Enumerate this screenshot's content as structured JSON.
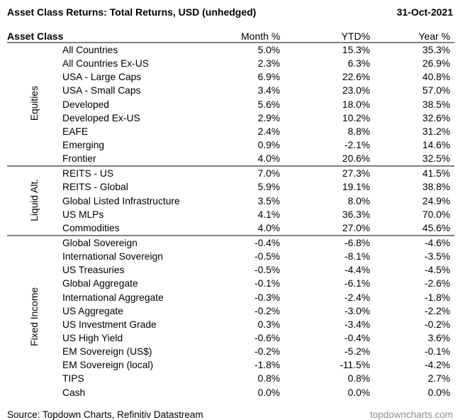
{
  "header": {
    "title": "Asset Class Returns: Total Returns, USD (unhedged)",
    "date": "31-Oct-2021"
  },
  "columns": {
    "asset_class": "Asset Class",
    "month": "Month %",
    "ytd": "YTD%",
    "year": "Year %"
  },
  "table": {
    "groups": [
      {
        "label": "Equities",
        "rows": [
          {
            "name": "All Countries",
            "month": "5.0%",
            "ytd": "15.3%",
            "year": "35.3%"
          },
          {
            "name": "All Countries Ex-US",
            "month": "2.3%",
            "ytd": "6.3%",
            "year": "26.9%"
          },
          {
            "name": "USA - Large Caps",
            "month": "6.9%",
            "ytd": "22.6%",
            "year": "40.8%"
          },
          {
            "name": "USA - Small Caps",
            "month": "3.4%",
            "ytd": "23.0%",
            "year": "57.0%"
          },
          {
            "name": "Developed",
            "month": "5.6%",
            "ytd": "18.0%",
            "year": "38.5%"
          },
          {
            "name": "Developed Ex-US",
            "month": "2.9%",
            "ytd": "10.2%",
            "year": "32.6%"
          },
          {
            "name": "EAFE",
            "month": "2.4%",
            "ytd": "8.8%",
            "year": "31.2%"
          },
          {
            "name": "Emerging",
            "month": "0.9%",
            "ytd": "-2.1%",
            "year": "14.6%"
          },
          {
            "name": "Frontier",
            "month": "4.0%",
            "ytd": "20.6%",
            "year": "32.5%"
          }
        ]
      },
      {
        "label": "Liquid Alt.",
        "rows": [
          {
            "name": "REITS - US",
            "month": "7.0%",
            "ytd": "27.3%",
            "year": "41.5%"
          },
          {
            "name": "REITS - Global",
            "month": "5.9%",
            "ytd": "19.1%",
            "year": "38.8%"
          },
          {
            "name": "Global Listed Infrastructure",
            "month": "3.5%",
            "ytd": "8.0%",
            "year": "24.9%"
          },
          {
            "name": "US MLPs",
            "month": "4.1%",
            "ytd": "36.3%",
            "year": "70.0%"
          },
          {
            "name": "Commodities",
            "month": "4.0%",
            "ytd": "27.0%",
            "year": "45.6%"
          }
        ]
      },
      {
        "label": "Fixed Income",
        "rows": [
          {
            "name": "Global Sovereign",
            "month": "-0.4%",
            "ytd": "-6.8%",
            "year": "-4.6%"
          },
          {
            "name": "International Sovereign",
            "month": "-0.5%",
            "ytd": "-8.1%",
            "year": "-3.5%"
          },
          {
            "name": "US Treasuries",
            "month": "-0.5%",
            "ytd": "-4.4%",
            "year": "-4.5%"
          },
          {
            "name": "Global Aggregate",
            "month": "-0.1%",
            "ytd": "-6.1%",
            "year": "-2.6%"
          },
          {
            "name": "International Aggregate",
            "month": "-0.3%",
            "ytd": "-2.4%",
            "year": "-1.8%"
          },
          {
            "name": "US Aggregate",
            "month": "-0.2%",
            "ytd": "-3.0%",
            "year": "-2.2%"
          },
          {
            "name": "US Investment Grade",
            "month": "0.3%",
            "ytd": "-3.4%",
            "year": "-0.2%"
          },
          {
            "name": "US High Yield",
            "month": "-0.6%",
            "ytd": "-0.4%",
            "year": "3.6%"
          },
          {
            "name": "EM Sovereign (US$)",
            "month": "-0.2%",
            "ytd": "-5.2%",
            "year": "-0.1%"
          },
          {
            "name": "EM Sovereign (local)",
            "month": "-1.8%",
            "ytd": "-11.5%",
            "year": "-4.2%"
          },
          {
            "name": "TIPS",
            "month": "0.8%",
            "ytd": "0.8%",
            "year": "2.7%"
          },
          {
            "name": "Cash",
            "month": "0.0%",
            "ytd": "0.0%",
            "year": "0.0%"
          }
        ]
      }
    ]
  },
  "footer": {
    "source": "Source: Topdown Charts, Refinitiv Datastream",
    "website": "topdowncharts.com"
  },
  "colors": {
    "text": "#000000",
    "rule_line": "#808080",
    "muted_text": "#8f8f8f",
    "background": "#ffffff"
  },
  "chart_data": {
    "type": "table",
    "title": "Asset Class Returns: Total Returns, USD (unhedged)",
    "as_of_date": "31-Oct-2021",
    "units": "percent",
    "columns": [
      "Asset Class",
      "Month %",
      "YTD%",
      "Year %"
    ],
    "groups": [
      {
        "label": "Equities",
        "rows": [
          [
            "All Countries",
            5.0,
            15.3,
            35.3
          ],
          [
            "All Countries Ex-US",
            2.3,
            6.3,
            26.9
          ],
          [
            "USA - Large Caps",
            6.9,
            22.6,
            40.8
          ],
          [
            "USA - Small Caps",
            3.4,
            23.0,
            57.0
          ],
          [
            "Developed",
            5.6,
            18.0,
            38.5
          ],
          [
            "Developed Ex-US",
            2.9,
            10.2,
            32.6
          ],
          [
            "EAFE",
            2.4,
            8.8,
            31.2
          ],
          [
            "Emerging",
            0.9,
            -2.1,
            14.6
          ],
          [
            "Frontier",
            4.0,
            20.6,
            32.5
          ]
        ]
      },
      {
        "label": "Liquid Alt.",
        "rows": [
          [
            "REITS - US",
            7.0,
            27.3,
            41.5
          ],
          [
            "REITS - Global",
            5.9,
            19.1,
            38.8
          ],
          [
            "Global Listed Infrastructure",
            3.5,
            8.0,
            24.9
          ],
          [
            "US MLPs",
            4.1,
            36.3,
            70.0
          ],
          [
            "Commodities",
            4.0,
            27.0,
            45.6
          ]
        ]
      },
      {
        "label": "Fixed Income",
        "rows": [
          [
            "Global Sovereign",
            -0.4,
            -6.8,
            -4.6
          ],
          [
            "International Sovereign",
            -0.5,
            -8.1,
            -3.5
          ],
          [
            "US Treasuries",
            -0.5,
            -4.4,
            -4.5
          ],
          [
            "Global Aggregate",
            -0.1,
            -6.1,
            -2.6
          ],
          [
            "International Aggregate",
            -0.3,
            -2.4,
            -1.8
          ],
          [
            "US Aggregate",
            -0.2,
            -3.0,
            -2.2
          ],
          [
            "US Investment Grade",
            0.3,
            -3.4,
            -0.2
          ],
          [
            "US High Yield",
            -0.6,
            -0.4,
            3.6
          ],
          [
            "EM Sovereign (US$)",
            -0.2,
            -5.2,
            -0.1
          ],
          [
            "EM Sovereign (local)",
            -1.8,
            -11.5,
            -4.2
          ],
          [
            "TIPS",
            0.8,
            0.8,
            2.7
          ],
          [
            "Cash",
            0.0,
            0.0,
            0.0
          ]
        ]
      }
    ]
  }
}
